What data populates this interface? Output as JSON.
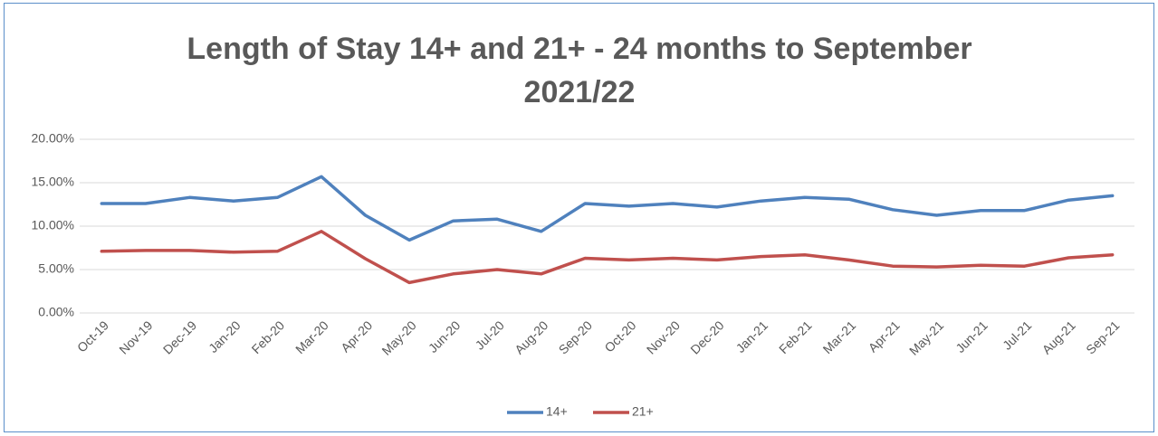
{
  "chart_data": {
    "type": "line",
    "title": "Length of Stay 14+ and 21+ - 24 months to September 2021/22",
    "categories": [
      "Oct-19",
      "Nov-19",
      "Dec-19",
      "Jan-20",
      "Feb-20",
      "Mar-20",
      "Apr-20",
      "May-20",
      "Jun-20",
      "Jul-20",
      "Aug-20",
      "Sep-20",
      "Oct-20",
      "Nov-20",
      "Dec-20",
      "Jan-21",
      "Feb-21",
      "Mar-21",
      "Apr-21",
      "May-21",
      "Jun-21",
      "Jul-21",
      "Aug-21",
      "Sep-21"
    ],
    "series": [
      {
        "name": "14+",
        "color": "#4f81bd",
        "values": [
          12.6,
          12.6,
          13.3,
          12.9,
          13.3,
          15.7,
          11.25,
          8.4,
          10.6,
          10.8,
          9.4,
          12.6,
          12.3,
          12.6,
          12.2,
          12.9,
          13.3,
          13.1,
          11.9,
          11.25,
          11.8,
          11.8,
          13.0,
          13.5
        ]
      },
      {
        "name": "21+",
        "color": "#c0504d",
        "values": [
          7.1,
          7.2,
          7.2,
          7.0,
          7.1,
          9.4,
          6.25,
          3.5,
          4.5,
          5.0,
          4.5,
          6.3,
          6.1,
          6.3,
          6.1,
          6.5,
          6.7,
          6.1,
          5.4,
          5.3,
          5.5,
          5.4,
          6.35,
          6.7
        ]
      }
    ],
    "ylim": [
      0,
      20
    ],
    "yticks": [
      {
        "value": 0,
        "label": "0.00%"
      },
      {
        "value": 5,
        "label": "5.00%"
      },
      {
        "value": 10,
        "label": "10.00%"
      },
      {
        "value": 15,
        "label": "15.00%"
      },
      {
        "value": 20,
        "label": "20.00%"
      }
    ],
    "grid": true,
    "legend": "bottom"
  }
}
